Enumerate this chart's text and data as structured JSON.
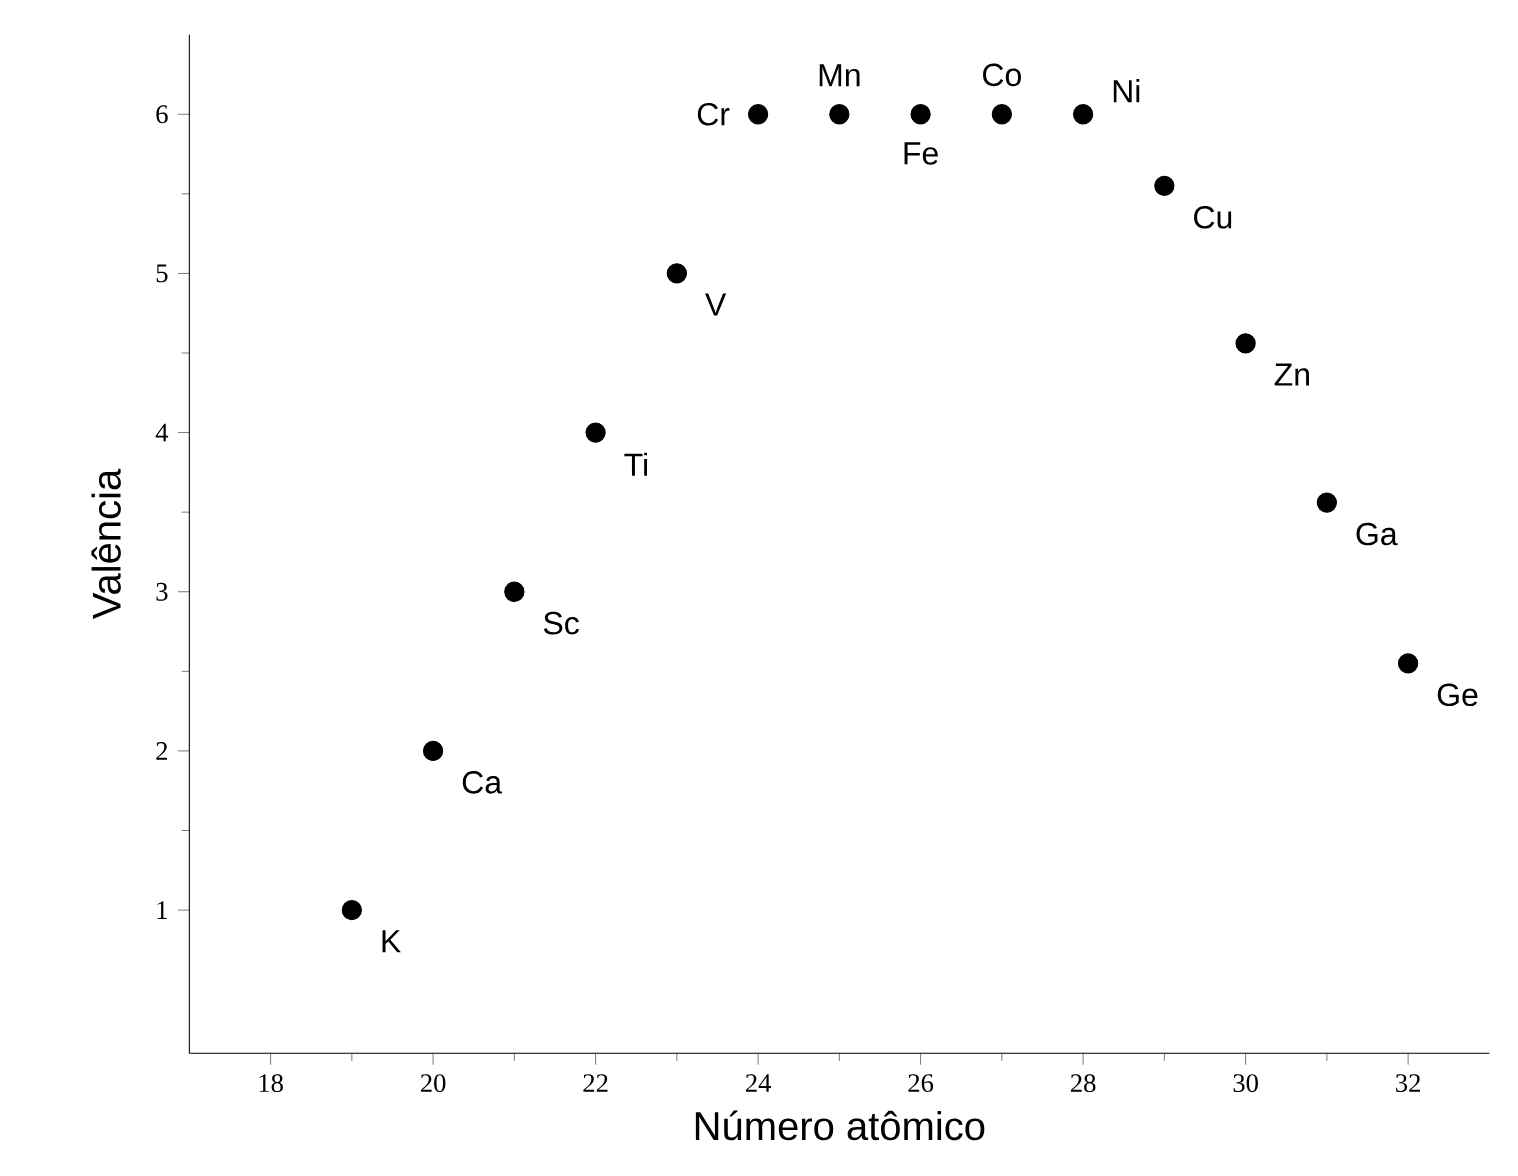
{
  "chart_data": {
    "type": "scatter",
    "xlabel": "Número atômico",
    "ylabel": "Valência",
    "x": [
      19,
      20,
      21,
      22,
      23,
      24,
      25,
      26,
      27,
      28,
      29,
      30,
      31,
      32
    ],
    "values": [
      1,
      2,
      3,
      4,
      5,
      6,
      6,
      6,
      6,
      6,
      5.55,
      4.56,
      3.56,
      2.55
    ],
    "color": "#000000",
    "marker": "circle",
    "xlim": [
      17,
      33
    ],
    "ylim": [
      0.1,
      6.5
    ],
    "xticks": [
      18,
      20,
      22,
      24,
      26,
      28,
      30,
      32
    ],
    "yticks": [
      1,
      2,
      3,
      4,
      5,
      6
    ],
    "annotations": [
      {
        "text": "K",
        "x": 19,
        "y": 1
      },
      {
        "text": "Ca",
        "x": 20,
        "y": 2
      },
      {
        "text": "Sc",
        "x": 21,
        "y": 3
      },
      {
        "text": "Ti",
        "x": 22,
        "y": 4
      },
      {
        "text": "V",
        "x": 23,
        "y": 5
      },
      {
        "text": "Cr",
        "x": 24,
        "y": 6
      },
      {
        "text": "Mn",
        "x": 25,
        "y": 6
      },
      {
        "text": "Fe",
        "x": 26,
        "y": 6
      },
      {
        "text": "Co",
        "x": 27,
        "y": 6
      },
      {
        "text": "Ni",
        "x": 28,
        "y": 6
      },
      {
        "text": "Cu",
        "x": 29,
        "y": 5.55
      },
      {
        "text": "Zn",
        "x": 30,
        "y": 4.56
      },
      {
        "text": "Ga",
        "x": 31,
        "y": 3.56
      },
      {
        "text": "Ge",
        "x": 32,
        "y": 2.55
      }
    ]
  }
}
